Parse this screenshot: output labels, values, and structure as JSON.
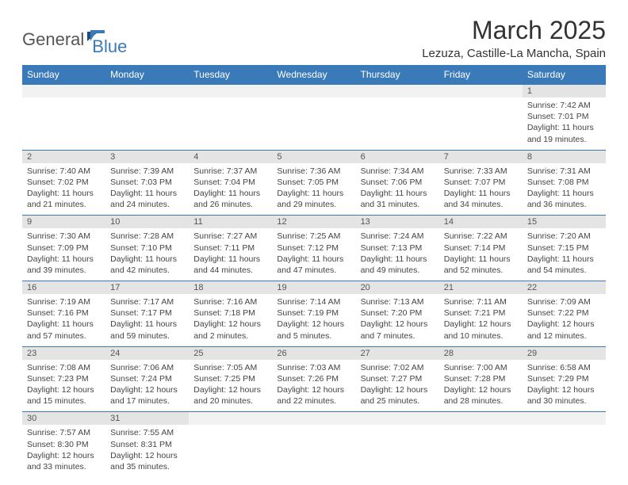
{
  "brand": {
    "part1": "General",
    "part2": "Blue"
  },
  "title": "March 2025",
  "location": "Lezuza, Castille-La Mancha, Spain",
  "colors": {
    "header_bg": "#3a7ab8",
    "header_fg": "#ffffff",
    "daynum_bg": "#e4e4e4",
    "border": "#3a7ab8"
  },
  "weekdays": [
    "Sunday",
    "Monday",
    "Tuesday",
    "Wednesday",
    "Thursday",
    "Friday",
    "Saturday"
  ],
  "weeks": [
    [
      null,
      null,
      null,
      null,
      null,
      null,
      {
        "n": "1",
        "sunrise": "7:42 AM",
        "sunset": "7:01 PM",
        "day_h": 11,
        "day_m": 19
      }
    ],
    [
      {
        "n": "2",
        "sunrise": "7:40 AM",
        "sunset": "7:02 PM",
        "day_h": 11,
        "day_m": 21
      },
      {
        "n": "3",
        "sunrise": "7:39 AM",
        "sunset": "7:03 PM",
        "day_h": 11,
        "day_m": 24
      },
      {
        "n": "4",
        "sunrise": "7:37 AM",
        "sunset": "7:04 PM",
        "day_h": 11,
        "day_m": 26
      },
      {
        "n": "5",
        "sunrise": "7:36 AM",
        "sunset": "7:05 PM",
        "day_h": 11,
        "day_m": 29
      },
      {
        "n": "6",
        "sunrise": "7:34 AM",
        "sunset": "7:06 PM",
        "day_h": 11,
        "day_m": 31
      },
      {
        "n": "7",
        "sunrise": "7:33 AM",
        "sunset": "7:07 PM",
        "day_h": 11,
        "day_m": 34
      },
      {
        "n": "8",
        "sunrise": "7:31 AM",
        "sunset": "7:08 PM",
        "day_h": 11,
        "day_m": 36
      }
    ],
    [
      {
        "n": "9",
        "sunrise": "7:30 AM",
        "sunset": "7:09 PM",
        "day_h": 11,
        "day_m": 39
      },
      {
        "n": "10",
        "sunrise": "7:28 AM",
        "sunset": "7:10 PM",
        "day_h": 11,
        "day_m": 42
      },
      {
        "n": "11",
        "sunrise": "7:27 AM",
        "sunset": "7:11 PM",
        "day_h": 11,
        "day_m": 44
      },
      {
        "n": "12",
        "sunrise": "7:25 AM",
        "sunset": "7:12 PM",
        "day_h": 11,
        "day_m": 47
      },
      {
        "n": "13",
        "sunrise": "7:24 AM",
        "sunset": "7:13 PM",
        "day_h": 11,
        "day_m": 49
      },
      {
        "n": "14",
        "sunrise": "7:22 AM",
        "sunset": "7:14 PM",
        "day_h": 11,
        "day_m": 52
      },
      {
        "n": "15",
        "sunrise": "7:20 AM",
        "sunset": "7:15 PM",
        "day_h": 11,
        "day_m": 54
      }
    ],
    [
      {
        "n": "16",
        "sunrise": "7:19 AM",
        "sunset": "7:16 PM",
        "day_h": 11,
        "day_m": 57
      },
      {
        "n": "17",
        "sunrise": "7:17 AM",
        "sunset": "7:17 PM",
        "day_h": 11,
        "day_m": 59
      },
      {
        "n": "18",
        "sunrise": "7:16 AM",
        "sunset": "7:18 PM",
        "day_h": 12,
        "day_m": 2
      },
      {
        "n": "19",
        "sunrise": "7:14 AM",
        "sunset": "7:19 PM",
        "day_h": 12,
        "day_m": 5
      },
      {
        "n": "20",
        "sunrise": "7:13 AM",
        "sunset": "7:20 PM",
        "day_h": 12,
        "day_m": 7
      },
      {
        "n": "21",
        "sunrise": "7:11 AM",
        "sunset": "7:21 PM",
        "day_h": 12,
        "day_m": 10
      },
      {
        "n": "22",
        "sunrise": "7:09 AM",
        "sunset": "7:22 PM",
        "day_h": 12,
        "day_m": 12
      }
    ],
    [
      {
        "n": "23",
        "sunrise": "7:08 AM",
        "sunset": "7:23 PM",
        "day_h": 12,
        "day_m": 15
      },
      {
        "n": "24",
        "sunrise": "7:06 AM",
        "sunset": "7:24 PM",
        "day_h": 12,
        "day_m": 17
      },
      {
        "n": "25",
        "sunrise": "7:05 AM",
        "sunset": "7:25 PM",
        "day_h": 12,
        "day_m": 20
      },
      {
        "n": "26",
        "sunrise": "7:03 AM",
        "sunset": "7:26 PM",
        "day_h": 12,
        "day_m": 22
      },
      {
        "n": "27",
        "sunrise": "7:02 AM",
        "sunset": "7:27 PM",
        "day_h": 12,
        "day_m": 25
      },
      {
        "n": "28",
        "sunrise": "7:00 AM",
        "sunset": "7:28 PM",
        "day_h": 12,
        "day_m": 28
      },
      {
        "n": "29",
        "sunrise": "6:58 AM",
        "sunset": "7:29 PM",
        "day_h": 12,
        "day_m": 30
      }
    ],
    [
      {
        "n": "30",
        "sunrise": "7:57 AM",
        "sunset": "8:30 PM",
        "day_h": 12,
        "day_m": 33
      },
      {
        "n": "31",
        "sunrise": "7:55 AM",
        "sunset": "8:31 PM",
        "day_h": 12,
        "day_m": 35
      },
      null,
      null,
      null,
      null,
      null
    ]
  ],
  "labels": {
    "sunrise": "Sunrise:",
    "sunset": "Sunset:",
    "daylight": "Daylight:",
    "and": "and",
    "minutes": "minutes.",
    "hours": "hours"
  }
}
